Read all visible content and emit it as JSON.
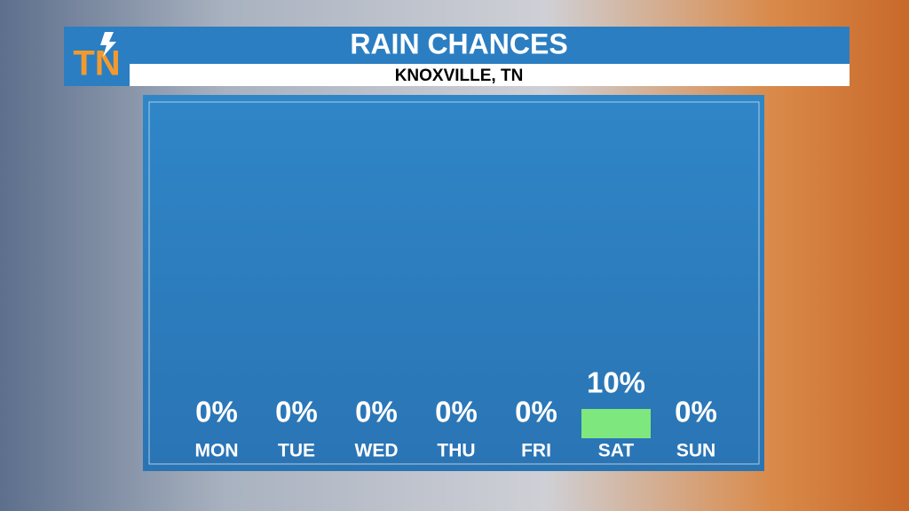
{
  "logo": "TN",
  "chart_data": {
    "type": "bar",
    "title": "RAIN CHANCES",
    "subtitle": "KNOXVILLE, TN",
    "categories": [
      "MON",
      "TUE",
      "WED",
      "THU",
      "FRI",
      "SAT",
      "SUN"
    ],
    "values": [
      0,
      0,
      0,
      0,
      0,
      10,
      0
    ],
    "value_labels": [
      "0%",
      "0%",
      "0%",
      "0%",
      "0%",
      "10%",
      "0%"
    ],
    "color": "#7ee87e"
  }
}
